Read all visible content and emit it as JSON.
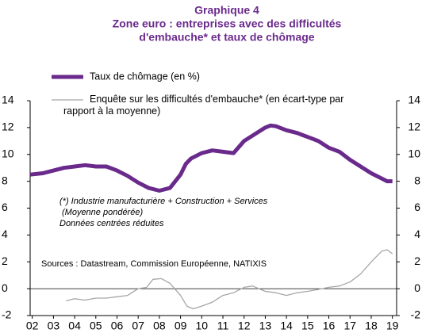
{
  "chart_data": {
    "type": "line",
    "title": [
      "Graphique 4",
      "Zone euro : entreprises avec des difficultés",
      "d'embauche* et taux de chômage"
    ],
    "annotations": [
      "(*) Industrie manufacturière  + Construction + Services",
      "(Moyenne pondérée)",
      "Données centrées réduites",
      "Sources : Datastream,  Commission Européenne,  NATIXIS"
    ],
    "xlim": [
      1.9,
      19.2
    ],
    "xticks": [
      {
        "value": 2,
        "label": "02"
      },
      {
        "value": 3,
        "label": "03"
      },
      {
        "value": 4,
        "label": "04"
      },
      {
        "value": 5,
        "label": "05"
      },
      {
        "value": 6,
        "label": "06"
      },
      {
        "value": 7,
        "label": "07"
      },
      {
        "value": 8,
        "label": "08"
      },
      {
        "value": 9,
        "label": "09"
      },
      {
        "value": 10,
        "label": "10"
      },
      {
        "value": 11,
        "label": "11"
      },
      {
        "value": 12,
        "label": "12"
      },
      {
        "value": 13,
        "label": "13"
      },
      {
        "value": 14,
        "label": "14"
      },
      {
        "value": 15,
        "label": "15"
      },
      {
        "value": 16,
        "label": "16"
      },
      {
        "value": 17,
        "label": "17"
      },
      {
        "value": 18,
        "label": "18"
      },
      {
        "value": 19,
        "label": "19"
      }
    ],
    "ylim": [
      -2,
      14
    ],
    "yticks": [
      -2,
      0,
      2,
      4,
      6,
      8,
      10,
      12,
      14
    ],
    "y2lim": [
      -2,
      14
    ],
    "y2ticks": [
      -2,
      0,
      2,
      4,
      6,
      8,
      10,
      12,
      14
    ],
    "series": [
      {
        "name": "Taux de chômage (en %)",
        "color": "#6a2a8c",
        "width": 5,
        "x": [
          1.9,
          2.5,
          3,
          3.5,
          4,
          4.5,
          5,
          5.5,
          6,
          6.5,
          7,
          7.5,
          8,
          8.5,
          9,
          9.25,
          9.5,
          10,
          10.5,
          11,
          11.5,
          12,
          12.5,
          13,
          13.25,
          13.5,
          14,
          14.5,
          15,
          15.5,
          16,
          16.5,
          17,
          17.5,
          18,
          18.5,
          18.75,
          19
        ],
        "values": [
          8.5,
          8.6,
          8.8,
          9.0,
          9.1,
          9.2,
          9.1,
          9.1,
          8.8,
          8.4,
          7.9,
          7.5,
          7.3,
          7.5,
          8.5,
          9.3,
          9.7,
          10.1,
          10.3,
          10.2,
          10.1,
          11.0,
          11.5,
          12.0,
          12.15,
          12.1,
          11.8,
          11.6,
          11.3,
          11.0,
          10.5,
          10.2,
          9.6,
          9.1,
          8.6,
          8.2,
          8.0,
          8.0
        ]
      },
      {
        "name": "Enquête sur les difficultés d'embauche* (en écart-type par rapport à la moyenne)",
        "color": "#a6a6a6",
        "width": 1.3,
        "x": [
          3.6,
          4,
          4.5,
          5,
          5.5,
          6,
          6.5,
          7,
          7.4,
          7.7,
          8.1,
          8.5,
          9,
          9.3,
          9.6,
          10,
          10.5,
          11,
          11.5,
          12,
          12.4,
          13,
          13.5,
          14,
          14.5,
          15,
          15.5,
          16,
          16.5,
          17,
          17.5,
          18,
          18.5,
          18.75,
          19
        ],
        "values": [
          -0.9,
          -0.75,
          -0.85,
          -0.7,
          -0.7,
          -0.6,
          -0.5,
          0.0,
          0.1,
          0.7,
          0.75,
          0.4,
          -0.5,
          -1.3,
          -1.5,
          -1.3,
          -1.0,
          -0.5,
          -0.3,
          0.1,
          0.2,
          -0.2,
          -0.3,
          -0.5,
          -0.3,
          -0.2,
          -0.05,
          0.1,
          0.2,
          0.5,
          1.1,
          2.0,
          2.8,
          2.9,
          2.6
        ]
      }
    ]
  }
}
